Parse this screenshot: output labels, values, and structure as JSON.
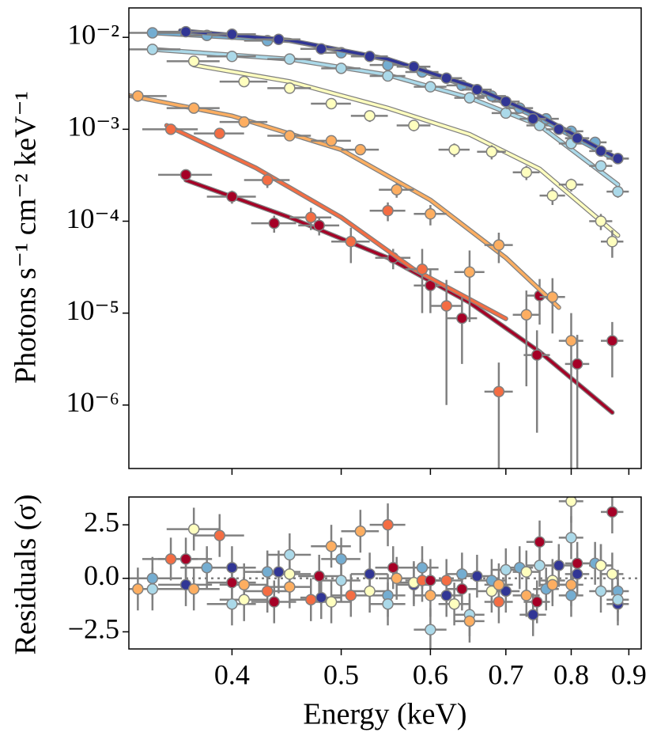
{
  "chart_data": [
    {
      "type": "errorbar",
      "xscale": "log",
      "yscale": "log",
      "ylabel": "Photons s⁻¹ cm⁻² keV⁻¹",
      "xlim": [
        0.324,
        0.923
      ],
      "ylim": [
        2.04e-07,
        0.0209
      ],
      "yticks": [
        {
          "value": 0.01,
          "label": "10⁻²"
        },
        {
          "value": 0.001,
          "label": "10⁻³"
        },
        {
          "value": 0.0001,
          "label": "10⁻⁴"
        },
        {
          "value": 1e-05,
          "label": "10⁻⁵"
        },
        {
          "value": 1e-06,
          "label": "10⁻⁶"
        }
      ],
      "series": [
        {
          "color": "#313695",
          "xerr": 0.02,
          "x": [
            0.364,
            0.4,
            0.44,
            0.48,
            0.53,
            0.58,
            0.62,
            0.66,
            0.7,
            0.74,
            0.78,
            0.81,
            0.85,
            0.88
          ],
          "values": [
            0.0115,
            0.0108,
            0.0095,
            0.0075,
            0.0062,
            0.0048,
            0.0036,
            0.0027,
            0.002,
            0.0013,
            0.001,
            0.0008,
            0.00058,
            0.00048
          ],
          "yerr": [
            0.0008,
            0.0007,
            0.0006,
            0.0005,
            0.0004,
            0.0003,
            0.00025,
            0.0002,
            0.00015,
            0.0001,
            8e-05,
            7e-05,
            5e-05,
            4e-05
          ],
          "model_x": [
            0.36,
            0.45,
            0.55,
            0.65,
            0.75,
            0.88
          ],
          "model_y": [
            0.0118,
            0.0093,
            0.0058,
            0.003,
            0.0014,
            0.00048
          ]
        },
        {
          "color": "#74add1",
          "xerr": 0.02,
          "x": [
            0.34,
            0.38,
            0.43,
            0.5,
            0.55,
            0.59,
            0.64,
            0.68,
            0.72,
            0.76,
            0.8,
            0.84,
            0.88
          ],
          "values": [
            0.0112,
            0.0105,
            0.0092,
            0.0068,
            0.005,
            0.0042,
            0.003,
            0.0023,
            0.0017,
            0.0013,
            0.00095,
            0.00072,
            0.00048
          ],
          "yerr": [
            0.0008,
            0.0007,
            0.0006,
            0.0005,
            0.0004,
            0.0003,
            0.00022,
            0.00017,
            0.00013,
            0.0001,
            8e-05,
            6e-05,
            4e-05
          ],
          "model_x": [
            0.34,
            0.45,
            0.55,
            0.65,
            0.75,
            0.88
          ],
          "model_y": [
            0.0112,
            0.0092,
            0.0057,
            0.0029,
            0.0013,
            0.00045
          ]
        },
        {
          "color": "#abd9e9",
          "xerr": 0.02,
          "x": [
            0.34,
            0.4,
            0.45,
            0.5,
            0.55,
            0.6,
            0.65,
            0.7,
            0.75,
            0.8,
            0.85,
            0.88
          ],
          "values": [
            0.0074,
            0.0062,
            0.0058,
            0.0046,
            0.0038,
            0.0029,
            0.0022,
            0.0015,
            0.0011,
            0.0007,
            0.0004,
            0.00021
          ],
          "yerr": [
            0.0005,
            0.0004,
            0.0004,
            0.0003,
            0.0003,
            0.0002,
            0.00017,
            0.00012,
            9e-05,
            7e-05,
            5e-05,
            3e-05
          ],
          "model_x": [
            0.34,
            0.45,
            0.55,
            0.65,
            0.75,
            0.88
          ],
          "model_y": [
            0.0074,
            0.0058,
            0.0039,
            0.0022,
            0.0011,
            0.00025
          ]
        },
        {
          "color": "#ffffbf",
          "xerr": 0.02,
          "x": [
            0.37,
            0.41,
            0.45,
            0.49,
            0.53,
            0.58,
            0.63,
            0.68,
            0.73,
            0.77,
            0.8,
            0.85,
            0.87
          ],
          "values": [
            0.0055,
            0.0033,
            0.0028,
            0.0019,
            0.0014,
            0.0011,
            0.0006,
            0.00057,
            0.00034,
            0.00019,
            0.00025,
            0.0001,
            6e-05
          ],
          "yerr": [
            0.0004,
            0.0003,
            0.0003,
            0.0002,
            0.0002,
            0.00015,
            0.0001,
            0.0001,
            6e-05,
            4e-05,
            4e-05,
            2e-05,
            2e-05
          ],
          "model_x": [
            0.37,
            0.45,
            0.55,
            0.65,
            0.75,
            0.88
          ],
          "model_y": [
            0.005,
            0.0033,
            0.0017,
            0.00088,
            0.00037,
            7e-05
          ]
        },
        {
          "color": "#fdae61",
          "xerr": 0.02,
          "x": [
            0.33,
            0.37,
            0.41,
            0.45,
            0.49,
            0.52,
            0.56,
            0.6,
            0.65,
            0.69,
            0.73,
            0.77,
            0.8
          ],
          "values": [
            0.0023,
            0.0017,
            0.0012,
            0.00085,
            0.00075,
            0.0006,
            0.00022,
            0.00012,
            2.8e-05,
            5.5e-05,
            9.6e-06,
            1.5e-05,
            5e-06
          ],
          "yerr": [
            0.0002,
            0.00015,
            0.0001,
            8e-05,
            8e-05,
            7e-05,
            4e-05,
            3e-05,
            2e-05,
            2e-05,
            8e-06,
            9e-06,
            5e-06
          ],
          "model_x": [
            0.32,
            0.4,
            0.5,
            0.6,
            0.7,
            0.78
          ],
          "model_y": [
            0.0024,
            0.0014,
            0.0006,
            0.00017,
            4e-05,
            1.15e-05
          ]
        },
        {
          "color": "#f46d43",
          "xerr": 0.02,
          "x": [
            0.353,
            0.39,
            0.43,
            0.47,
            0.51,
            0.55,
            0.59,
            0.62,
            0.69
          ],
          "values": [
            0.001,
            0.0009,
            0.00028,
            0.00011,
            6e-05,
            0.00013,
            3e-05,
            1.2e-05,
            1.4e-06
          ],
          "yerr": [
            0.0001,
            0.0001,
            5e-05,
            3e-05,
            2.5e-05,
            3e-05,
            2e-05,
            1.1e-05,
            1.5e-06
          ],
          "model_x": [
            0.35,
            0.42,
            0.5,
            0.58,
            0.7
          ],
          "model_y": [
            0.0011,
            0.00038,
            0.00011,
            3e-05,
            8.7e-06
          ]
        },
        {
          "color": "#a50026",
          "xerr": 0.02,
          "x": [
            0.364,
            0.4,
            0.436,
            0.478,
            0.556,
            0.6,
            0.64,
            0.746,
            0.75,
            0.81,
            0.87
          ],
          "values": [
            0.00032,
            0.000185,
            9.5e-05,
            9e-05,
            4e-05,
            2e-05,
            8.8e-06,
            3.5e-06,
            1.55e-05,
            2.8e-06,
            5e-06
          ],
          "yerr": [
            4e-05,
            3e-05,
            2e-05,
            2e-05,
            1e-05,
            1e-05,
            6e-06,
            3e-06,
            8e-06,
            3e-06,
            3e-06
          ],
          "model_x": [
            0.364,
            0.45,
            0.55,
            0.65,
            0.75,
            0.87
          ],
          "model_y": [
            0.00028,
            0.00011,
            4e-05,
            1.3e-05,
            3.8e-06,
            8.3e-07
          ]
        }
      ]
    },
    {
      "type": "residuals",
      "xscale": "log",
      "xlabel": "Energy (keV)",
      "ylabel": "Residuals (σ)",
      "xlim": [
        0.324,
        0.923
      ],
      "ylim": [
        -3.3,
        3.8
      ],
      "xticks": [
        0.4,
        0.5,
        0.6,
        0.7,
        0.8,
        0.9
      ],
      "yticks": [
        2.5,
        {
          "value": 0,
          "label": "0.0"
        },
        {
          "value": -2.5,
          "label": "−2.5"
        }
      ],
      "zero_line": true,
      "yerr": 1,
      "xerr": 0.02,
      "series": [
        {
          "color": "#313695",
          "x": [
            0.364,
            0.4,
            0.44,
            0.48,
            0.53,
            0.58,
            0.62,
            0.66,
            0.7,
            0.74,
            0.78,
            0.81,
            0.85,
            0.88
          ],
          "values": [
            -0.3,
            0.5,
            0.3,
            -0.9,
            0.2,
            -0.3,
            -0.8,
            0.1,
            -0.6,
            -1.7,
            0.6,
            0.2,
            0.6,
            -1.2
          ]
        },
        {
          "color": "#74add1",
          "x": [
            0.34,
            0.38,
            0.43,
            0.5,
            0.55,
            0.59,
            0.64,
            0.68,
            0.72,
            0.76,
            0.8,
            0.84,
            0.88
          ],
          "values": [
            0.0,
            0.5,
            0.3,
            0.9,
            -0.8,
            0.5,
            0.2,
            -0.1,
            0.5,
            -0.5,
            -0.8,
            0.7,
            -0.6
          ]
        },
        {
          "color": "#abd9e9",
          "x": [
            0.34,
            0.4,
            0.45,
            0.5,
            0.55,
            0.6,
            0.65,
            0.7,
            0.75,
            0.8,
            0.85,
            0.88
          ],
          "values": [
            -0.5,
            -1.2,
            1.1,
            -0.1,
            -1.2,
            -2.4,
            -1.7,
            0.4,
            0.6,
            1.9,
            -0.6,
            -1.0
          ]
        },
        {
          "color": "#ffffbf",
          "x": [
            0.37,
            0.41,
            0.45,
            0.49,
            0.53,
            0.58,
            0.63,
            0.68,
            0.73,
            0.77,
            0.8,
            0.85,
            0.87
          ],
          "values": [
            2.3,
            -1.0,
            0.2,
            -1.1,
            -0.6,
            -0.2,
            -1.2,
            -0.6,
            0.3,
            -0.1,
            3.6,
            0.6,
            0.2
          ]
        },
        {
          "color": "#fdae61",
          "x": [
            0.33,
            0.37,
            0.41,
            0.45,
            0.49,
            0.52,
            0.56,
            0.6,
            0.65,
            0.69,
            0.73,
            0.77,
            0.8
          ],
          "values": [
            -0.5,
            -0.5,
            -0.3,
            -0.4,
            1.5,
            2.2,
            0.0,
            -0.8,
            -2.0,
            -0.3,
            -0.8,
            -0.3,
            -0.3
          ]
        },
        {
          "color": "#f46d43",
          "x": [
            0.353,
            0.39,
            0.43,
            0.47,
            0.51,
            0.55,
            0.59,
            0.62,
            0.69
          ],
          "values": [
            0.9,
            2.0,
            -0.6,
            -1.0,
            -0.8,
            2.5,
            -0.1,
            -0.1,
            -1.1
          ]
        },
        {
          "color": "#a50026",
          "x": [
            0.364,
            0.4,
            0.436,
            0.478,
            0.556,
            0.6,
            0.64,
            0.746,
            0.75,
            0.81,
            0.87
          ],
          "values": [
            0.9,
            -0.2,
            -1.1,
            0.1,
            0.5,
            -0.1,
            -0.5,
            -1.1,
            1.7,
            0.7,
            3.1
          ]
        }
      ]
    }
  ]
}
